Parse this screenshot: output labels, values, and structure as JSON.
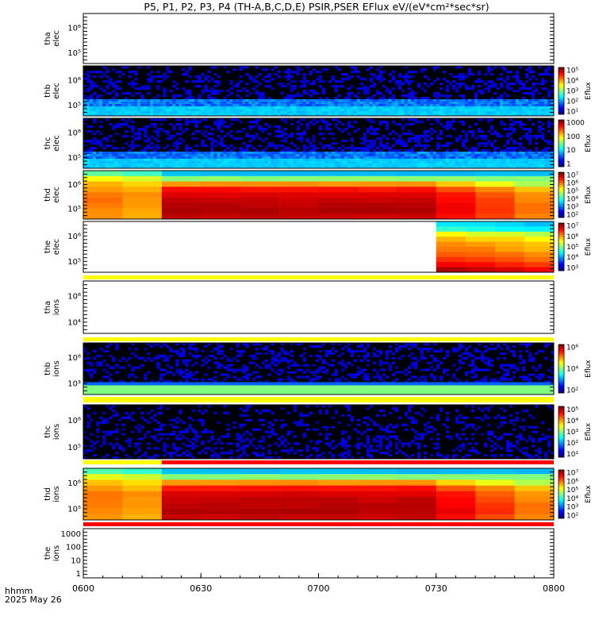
{
  "title": "P5, P1, P2, P3, P4 (TH-A,B,C,D,E) PSIR,PSER EFlux eV/(eV*cm²*sec*sr)",
  "footer": {
    "xlabel_line1": "hhmm",
    "xlabel_line2": "2025 May 26"
  },
  "colors": {
    "background": "#ffffff",
    "axis": "#000000",
    "flag_yellow": "#ffff00",
    "flag_red": "#ff0000"
  },
  "chart_data": {
    "type": "heatmap",
    "x_range": [
      "06:00",
      "08:00"
    ],
    "x_ticks": [
      "0600",
      "0630",
      "0700",
      "0730",
      "0800"
    ],
    "panels": [
      {
        "id": "tha-elec",
        "ylabel_lines": [
          "tha",
          "elec"
        ],
        "y_ticks": [
          "10⁶",
          "10⁵"
        ],
        "kind": "empty"
      },
      {
        "id": "thb-elec",
        "ylabel_lines": [
          "thb",
          "elec"
        ],
        "y_ticks": [
          "10⁶",
          "10⁵"
        ],
        "kind": "noise",
        "colorbar": {
          "label": "Eflux",
          "ticks": [
            "10⁵",
            "10⁴",
            "10³",
            "10²",
            "10¹"
          ]
        }
      },
      {
        "id": "thc-elec",
        "ylabel_lines": [
          "thc",
          "elec"
        ],
        "y_ticks": [
          "10⁶",
          "10⁵"
        ],
        "kind": "noise",
        "colorbar": {
          "label": "Eflux",
          "ticks": [
            "1000",
            "100",
            "10",
            "1"
          ]
        }
      },
      {
        "id": "thd-elec",
        "ylabel_lines": [
          "thd",
          "elec"
        ],
        "y_ticks": [
          "10⁶",
          "10⁵"
        ],
        "kind": "plasma",
        "change_at": "06:20",
        "colorbar": {
          "label": "Eflux",
          "ticks": [
            "10⁷",
            "10⁶",
            "10⁵",
            "10⁴",
            "10³",
            "10²"
          ]
        }
      },
      {
        "id": "the-elec",
        "ylabel_lines": [
          "the",
          "elec"
        ],
        "y_ticks": [
          "10⁶",
          "10⁵"
        ],
        "kind": "partial",
        "data_start": "07:30",
        "colorbar": {
          "label": "Eflux",
          "ticks": [
            "10⁷",
            "10⁶",
            "10⁵",
            "10⁴",
            "10³"
          ]
        }
      },
      {
        "id": "tha-ions",
        "ylabel_lines": [
          "tha",
          "ions"
        ],
        "y_ticks": [
          "10⁶",
          "10⁴"
        ],
        "kind": "empty"
      },
      {
        "id": "thb-ions",
        "ylabel_lines": [
          "thb",
          "ions"
        ],
        "y_ticks": [
          "10⁶",
          "10³"
        ],
        "kind": "noise-band",
        "colorbar": {
          "label": "Eflux",
          "ticks": [
            "10⁶",
            "10⁴",
            "10²"
          ]
        }
      },
      {
        "id": "thc-ions",
        "ylabel_lines": [
          "thc",
          "ions"
        ],
        "y_ticks": [
          "10⁶",
          "10⁵"
        ],
        "kind": "noise-sparse",
        "colorbar": {
          "label": "Eflux",
          "ticks": [
            "10⁵",
            "10⁴",
            "10³",
            "10²",
            "10¹"
          ]
        }
      },
      {
        "id": "thd-ions",
        "ylabel_lines": [
          "thd",
          "ions"
        ],
        "y_ticks": [
          "10⁶",
          "10⁵"
        ],
        "kind": "plasma-ions",
        "change_at": "06:20",
        "colorbar": {
          "label": "Eflux",
          "ticks": [
            "10⁷",
            "10⁶",
            "10⁵",
            "10⁴",
            "10³",
            "10²"
          ]
        }
      },
      {
        "id": "the-ions",
        "ylabel_lines": [
          "the",
          "ions"
        ],
        "y_ticks": [
          "1000",
          "100",
          "10",
          "1"
        ],
        "kind": "empty"
      }
    ]
  }
}
